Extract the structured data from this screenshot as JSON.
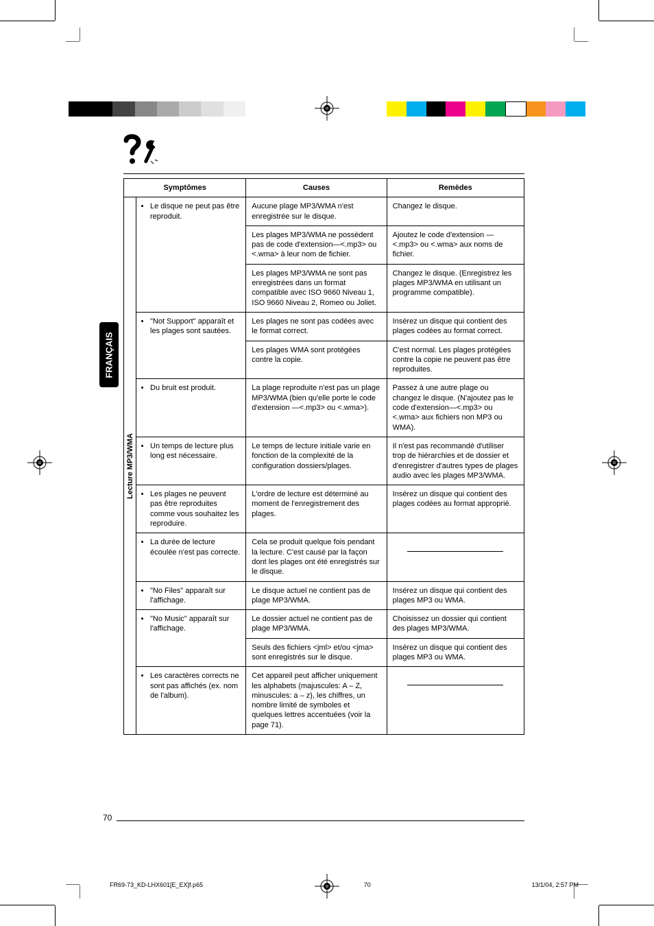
{
  "language_tab": "FRANÇAIS",
  "page_number": "70",
  "headers": {
    "symptoms": "Symptômes",
    "causes": "Causes",
    "remedies": "Remèdes"
  },
  "category_label": "Lecture MP3/WMA",
  "rows": [
    {
      "symptom": "Le disque ne peut pas être reproduit.",
      "cause": "Aucune plage MP3/WMA n'est enregistrée sur le disque.",
      "remedy": "Changez le disque."
    },
    {
      "symptom": "",
      "cause": "Les plages MP3/WMA ne possèdent pas de code d'extension—<.mp3> ou <.wma> à leur nom de fichier.",
      "remedy": "Ajoutez le code d'extension —<.mp3> ou <.wma> aux noms de fichier."
    },
    {
      "symptom": "",
      "cause": "Les plages MP3/WMA ne sont pas enregistrées dans un format compatible avec ISO 9660 Niveau 1, ISO 9660 Niveau 2, Romeo ou Joliet.",
      "remedy": "Changez le disque. (Enregistrez les plages MP3/WMA en utilisant un programme compatible)."
    },
    {
      "symptom": "\"Not Support\" apparaît et les plages sont sautées.",
      "cause": "Les plages ne sont pas codées avec le format correct.",
      "remedy": "Insérez un disque qui contient des plages codées au format correct."
    },
    {
      "symptom": "",
      "cause": "Les plages WMA sont protégées contre la copie.",
      "remedy": "C'est normal. Les plages protégées contre la copie ne peuvent pas être reproduites."
    },
    {
      "symptom": "Du bruit est produit.",
      "cause": "La plage reproduite n'est pas un plage MP3/WMA (bien qu'elle porte le code d'extension —<.mp3> ou <.wma>).",
      "remedy": "Passez à une autre plage ou changez le disque. (N'ajoutez pas le code d'extension—<.mp3> ou <.wma> aux fichiers non MP3 ou WMA)."
    },
    {
      "symptom": "Un temps de lecture plus long est nécessaire.",
      "cause": "Le temps de lecture initiale varie en fonction de la complexité de la configuration dossiers/plages.",
      "remedy": "Il n'est pas recommandé d'utiliser trop de hiérarchies et de dossier et d'enregistrer d'autres types de plages audio avec les plages MP3/WMA."
    },
    {
      "symptom": "Les plages ne peuvent pas être reproduites comme vous souhaitez les reproduire.",
      "cause": "L'ordre de lecture est déterminé au moment de l'enregistrement des plages.",
      "remedy": "Insérez un disque qui contient des plages codées au format approprié."
    },
    {
      "symptom": "La durée de lecture écoulée n'est pas correcte.",
      "cause": "Cela se produit quelque fois pendant la lecture. C'est causé par la façon dont les plages ont été enregistrés sur le disque.",
      "remedy": "DASH"
    },
    {
      "symptom": "\"No Files\" apparaît sur l'affichage.",
      "cause": "Le disque actuel ne contient pas de plage MP3/WMA.",
      "remedy": "Insérez un disque qui contient des plages MP3 ou WMA."
    },
    {
      "symptom": "\"No Music\" apparaît sur l'affichage.",
      "cause": "Le dossier actuel ne contient pas de plage MP3/WMA.",
      "remedy": "Choisissez un dossier qui contient des plages MP3/WMA."
    },
    {
      "symptom": "",
      "cause": "Seuls des fichiers <jml> et/ou <jma> sont enregistrés sur le disque.",
      "remedy": "Insérez un disque qui contient des plages MP3 ou WMA."
    },
    {
      "symptom": "Les caractères corrects ne sont pas affichés (ex. nom de l'album).",
      "cause": "Cet appareil peut afficher uniquement les alphabets (majuscules: A – Z, minuscules: a – z), les chiffres, un nombre limité de symboles et quelques lettres accentuées (voir la page 71).",
      "remedy": "DASH"
    }
  ],
  "footer": {
    "file": "FR69-73_KD-LHX601[E_EX]f.p65",
    "page": "70",
    "datetime": "13/1/04, 2:57 PM"
  },
  "colors": {
    "left_bar": [
      "#000000",
      "#000000",
      "#444444",
      "#888888",
      "#aaaaaa",
      "#cccccc",
      "#e0e0e0",
      "#f0f0f0",
      "#ffffff"
    ],
    "right_bar": [
      "#fff200",
      "#00aeef",
      "#000000",
      "#ec008c",
      "#fff200",
      "#00a651",
      "#ffffff",
      "#f7941d",
      "#f49ac1",
      "#00aeef"
    ]
  }
}
